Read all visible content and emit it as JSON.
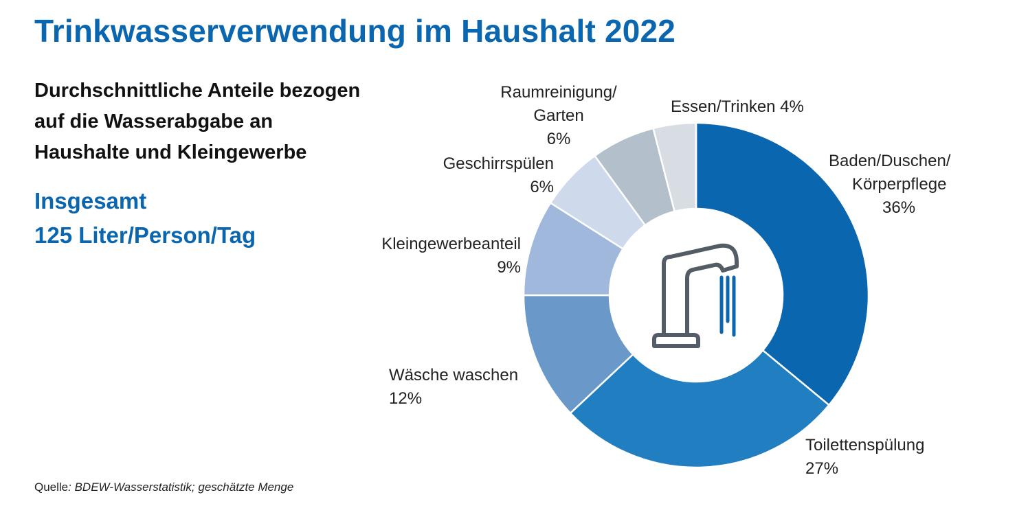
{
  "header": {
    "title": "Trinkwasserverwendung im Haushalt 2022",
    "subtitle_lines": [
      "Durchschnittliche Anteile bezogen",
      "auf die Wasserabgabe an",
      "Haushalte und Kleingewerbe"
    ],
    "total_lines": [
      "Insgesamt",
      "125 Liter/Person/Tag"
    ]
  },
  "footer": {
    "source_prefix": "Quelle",
    "source_text": ": BDEW-Wasserstatistik; geschätzte Menge"
  },
  "labels": {
    "baden": [
      "Baden/Duschen/",
      "Körperpflege",
      "36%"
    ],
    "toilette": [
      "Toilettenspülung",
      "27%"
    ],
    "waesche": [
      "Wäsche waschen",
      "12%"
    ],
    "klein": [
      "Kleingewerbeanteil",
      "9%"
    ],
    "geschirr": [
      "Geschirrspülen",
      "6%"
    ],
    "raum": [
      "Raumreinigung/",
      "Garten",
      "6%"
    ],
    "essen": [
      "Essen/Trinken 4%"
    ]
  },
  "chart_data": {
    "type": "pie",
    "variant": "donut",
    "unit": "%",
    "start": "top, clockwise",
    "center_icon": "faucet-icon",
    "slices": [
      {
        "name": "Baden/Duschen/Körperpflege",
        "value": 36,
        "color": "#0b66b0"
      },
      {
        "name": "Toilettenspülung",
        "value": 27,
        "color": "#207ec1"
      },
      {
        "name": "Wäsche waschen",
        "value": 12,
        "color": "#6a98c8"
      },
      {
        "name": "Kleingewerbeanteil",
        "value": 9,
        "color": "#9fb8dc"
      },
      {
        "name": "Geschirrspülen",
        "value": 6,
        "color": "#ced9ec"
      },
      {
        "name": "Raumreinigung/Garten",
        "value": 6,
        "color": "#b3bfca"
      },
      {
        "name": "Essen/Trinken",
        "value": 4,
        "color": "#d8dde3"
      }
    ]
  }
}
